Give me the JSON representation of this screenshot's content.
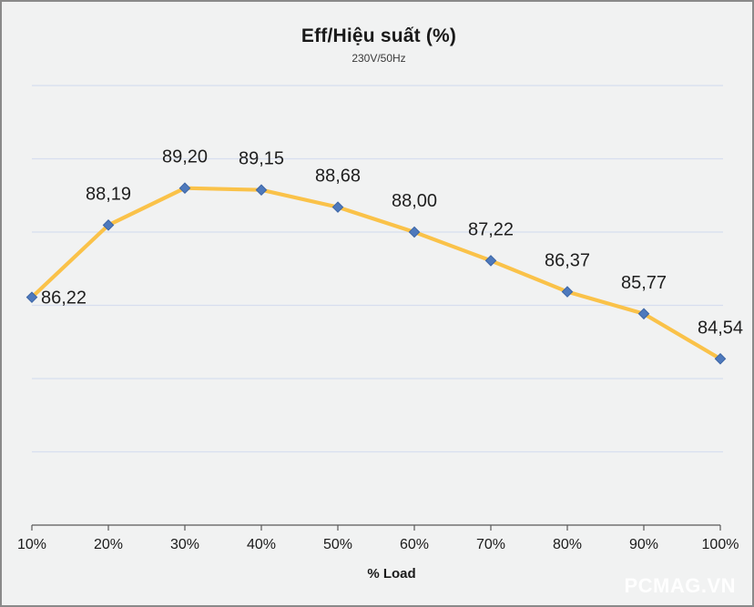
{
  "chart": {
    "title": "Eff/Hiệu suất (%)",
    "subtitle": "230V/50Hz",
    "xlabel": "% Load",
    "watermark": "PCMAG.VN"
  },
  "chart_data": {
    "type": "line",
    "title": "Eff/Hiệu suất (%)",
    "subtitle": "230V/50Hz",
    "xlabel": "% Load",
    "ylabel": "",
    "categories": [
      "10%",
      "20%",
      "30%",
      "40%",
      "50%",
      "60%",
      "70%",
      "80%",
      "90%",
      "100%"
    ],
    "values": [
      86.22,
      88.19,
      89.2,
      89.15,
      88.68,
      88.0,
      87.22,
      86.37,
      85.77,
      84.54
    ],
    "data_labels": [
      "86,22",
      "88,19",
      "89,20",
      "89,15",
      "88,68",
      "88,00",
      "87,22",
      "86,37",
      "85,77",
      "84,54"
    ],
    "ylim": [
      80,
      92
    ],
    "gridline_step": 2,
    "grid": true,
    "legend_position": "none",
    "colors": {
      "line": "#fac249",
      "marker_fill": "#4e79bc",
      "marker_border": "#3d66a6",
      "gridline": "#d7deef",
      "axis": "#5a5a5a",
      "data_label_text": "#1f1f1f",
      "tick_label_text": "#1a1a1a",
      "background": "#f1f2f2"
    }
  }
}
